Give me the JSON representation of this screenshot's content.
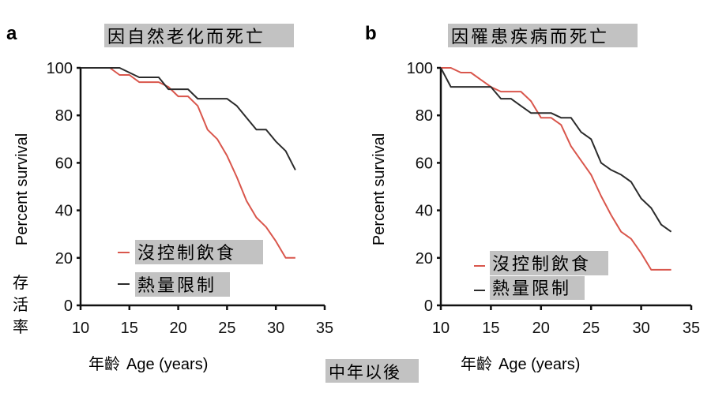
{
  "colors": {
    "ad_libitum": "#d9564c",
    "caloric_restriction": "#2b2b2b",
    "axis": "#111111",
    "label_highlight": "#c2c2c2"
  },
  "shared": {
    "center_caption": "中年以後",
    "y_side_caption": "存活率"
  },
  "chart_data": [
    {
      "type": "line",
      "panel_letter": "a",
      "title": "因自然老化而死亡",
      "xlabel": "Age (years)",
      "xlabel_cjk": "年齡",
      "ylabel": "Percent survival",
      "xlim": [
        10,
        35
      ],
      "ylim": [
        0,
        100
      ],
      "xticks": [
        10,
        15,
        20,
        25,
        30,
        35
      ],
      "yticks": [
        0,
        20,
        40,
        60,
        80,
        100
      ],
      "grid": false,
      "legend_position": "bottom-left",
      "series": [
        {
          "name": "沒控制飲食",
          "color_key": "ad_libitum",
          "x": [
            10,
            13,
            14,
            15,
            16,
            18,
            19,
            20,
            21,
            22,
            23,
            24,
            25,
            26,
            27,
            28,
            29,
            30,
            31,
            32
          ],
          "y": [
            100,
            100,
            97,
            97,
            94,
            94,
            92,
            88,
            88,
            84,
            74,
            70,
            63,
            54,
            44,
            37,
            33,
            27,
            20,
            20
          ]
        },
        {
          "name": "熱量限制",
          "color_key": "caloric_restriction",
          "x": [
            10,
            14,
            15,
            16,
            18,
            19,
            21,
            22,
            24,
            25,
            26,
            27,
            28,
            29,
            30,
            31,
            32
          ],
          "y": [
            100,
            100,
            98,
            96,
            96,
            91,
            91,
            87,
            87,
            87,
            84,
            79,
            74,
            74,
            69,
            65,
            57
          ]
        }
      ]
    },
    {
      "type": "line",
      "panel_letter": "b",
      "title": "因罹患疾病而死亡",
      "xlabel": "Age (years)",
      "xlabel_cjk": "年齡",
      "ylabel": "Percent survival",
      "xlim": [
        10,
        35
      ],
      "ylim": [
        0,
        100
      ],
      "xticks": [
        10,
        15,
        20,
        25,
        30,
        35
      ],
      "yticks": [
        0,
        20,
        40,
        60,
        80,
        100
      ],
      "grid": false,
      "legend_position": "bottom-left",
      "series": [
        {
          "name": "沒控制飲食",
          "color_key": "ad_libitum",
          "x": [
            10,
            11,
            12,
            13,
            14,
            15,
            16,
            17,
            18,
            19,
            20,
            21,
            22,
            23,
            24,
            25,
            26,
            27,
            28,
            29,
            30,
            31,
            32,
            33
          ],
          "y": [
            100,
            100,
            98,
            98,
            95,
            92,
            90,
            90,
            90,
            86,
            79,
            79,
            76,
            67,
            61,
            55,
            46,
            38,
            31,
            28,
            22,
            15,
            15,
            15
          ]
        },
        {
          "name": "熱量限制",
          "color_key": "caloric_restriction",
          "x": [
            10,
            11,
            12,
            13,
            14,
            15,
            16,
            17,
            18,
            19,
            20,
            21,
            22,
            23,
            24,
            25,
            26,
            27,
            28,
            29,
            30,
            31,
            32,
            33
          ],
          "y": [
            100,
            92,
            92,
            92,
            92,
            92,
            87,
            87,
            84,
            81,
            81,
            81,
            79,
            79,
            73,
            70,
            60,
            57,
            55,
            52,
            45,
            41,
            34,
            31
          ]
        }
      ]
    }
  ]
}
